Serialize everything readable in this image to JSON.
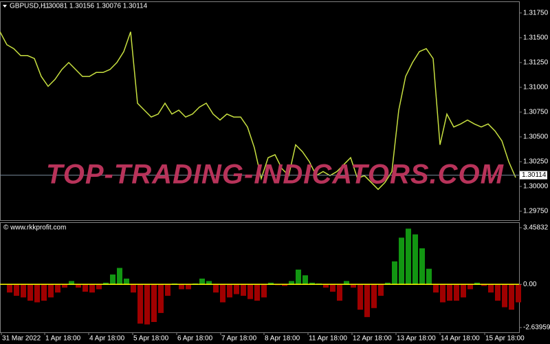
{
  "header": {
    "symbol": "GBPUSD,H1",
    "ohlc": "1.30081 1.30156 1.30076 1.30114"
  },
  "watermark": "TOP-TRADING-INDICATORS.COM",
  "chart_data": [
    {
      "type": "line",
      "color": "#c8e040",
      "values": [
        1.3156,
        1.3143,
        1.3139,
        1.3132,
        1.3132,
        1.3129,
        1.3111,
        1.3101,
        1.3108,
        1.3118,
        1.3125,
        1.3118,
        1.3111,
        1.3111,
        1.3115,
        1.3115,
        1.3118,
        1.3125,
        1.3136,
        1.3156,
        1.3084,
        1.3077,
        1.307,
        1.3073,
        1.3084,
        1.3073,
        1.3077,
        1.307,
        1.3073,
        1.308,
        1.3084,
        1.3073,
        1.3067,
        1.3073,
        1.307,
        1.307,
        1.306,
        1.3039,
        1.3008,
        1.3029,
        1.3032,
        1.3018,
        1.3011,
        1.3042,
        1.3035,
        1.3025,
        1.3011,
        1.3015,
        1.3011,
        1.3015,
        1.3022,
        1.3029,
        1.3008,
        1.3011,
        1.3004,
        1.2997,
        1.3004,
        1.3015,
        1.3077,
        1.3111,
        1.3125,
        1.3136,
        1.3139,
        1.3129,
        1.3042,
        1.3073,
        1.306,
        1.3063,
        1.3067,
        1.3063,
        1.306,
        1.3063,
        1.3056,
        1.3046,
        1.3025,
        1.3009
      ],
      "ylim": [
        1.2966,
        1.3186
      ],
      "yticks": [
        {
          "value": 1.3175,
          "label": "1.31750"
        },
        {
          "value": 1.315,
          "label": "1.31500"
        },
        {
          "value": 1.3125,
          "label": "1.31250"
        },
        {
          "value": 1.31,
          "label": "1.31000"
        },
        {
          "value": 1.3075,
          "label": "1.30750"
        },
        {
          "value": 1.305,
          "label": "1.30500"
        },
        {
          "value": 1.3025,
          "label": "1.30250"
        },
        {
          "value": 1.3,
          "label": "1.30000"
        },
        {
          "value": 1.2975,
          "label": "1.29750"
        }
      ],
      "current_price": 1.30114
    },
    {
      "type": "bar",
      "title": "© www.rkkprofit.com",
      "values": [
        0,
        -0.5,
        -0.7,
        -0.8,
        -1.0,
        -1.1,
        -1.0,
        -0.8,
        -0.5,
        -0.2,
        0.2,
        -0.2,
        -0.45,
        -0.5,
        -0.3,
        0.1,
        0.6,
        1.0,
        0.35,
        -0.5,
        -2.4,
        -2.45,
        -2.3,
        -1.75,
        -0.7,
        0.05,
        -0.3,
        -0.3,
        0.05,
        0.35,
        0.2,
        -0.5,
        -1.1,
        -0.8,
        -0.6,
        -0.7,
        -0.9,
        -1.0,
        -0.8,
        0.1,
        -0.05,
        -0.1,
        0.2,
        0.9,
        0.55,
        0.1,
        0.05,
        -0.2,
        -0.45,
        -1.0,
        0.2,
        -0.2,
        -1.55,
        -2.0,
        -1.45,
        -0.7,
        0.1,
        1.4,
        2.85,
        3.4,
        3.05,
        2.2,
        0.95,
        -0.5,
        -1.1,
        -1.0,
        -1.0,
        -0.8,
        -0.3,
        0.1,
        -0.1,
        -0.5,
        -1.0,
        -1.4,
        -1.55,
        -1.1
      ],
      "colors": {
        "positive": "#129612",
        "negative": "#a00000"
      },
      "zero_line_color": "#ffff00",
      "ylim": [
        -2.93,
        3.75
      ],
      "yticks": [
        3.45832,
        {
          "value": 0,
          "label": "0.00"
        },
        -2.63959
      ],
      "xlim": [
        0,
        75.5
      ],
      "xticks": [
        {
          "value": 0.2,
          "label": "31 Mar 2022"
        },
        {
          "value": 6.5,
          "label": "1 Apr 18:00"
        },
        {
          "value": 12.9,
          "label": "4 Apr 18:00"
        },
        {
          "value": 19.3,
          "label": "5 Apr 18:00"
        },
        {
          "value": 25.7,
          "label": "6 Apr 18:00"
        },
        {
          "value": 32.1,
          "label": "7 Apr 18:00"
        },
        {
          "value": 38.4,
          "label": "8 Apr 18:00"
        },
        {
          "value": 44.8,
          "label": "11 Apr 18:00"
        },
        {
          "value": 51.2,
          "label": "12 Apr 18:00"
        },
        {
          "value": 57.6,
          "label": "13 Apr 18:00"
        },
        {
          "value": 64.0,
          "label": "14 Apr 18:00"
        },
        {
          "value": 70.5,
          "label": "15 Apr 18:00"
        }
      ]
    }
  ]
}
